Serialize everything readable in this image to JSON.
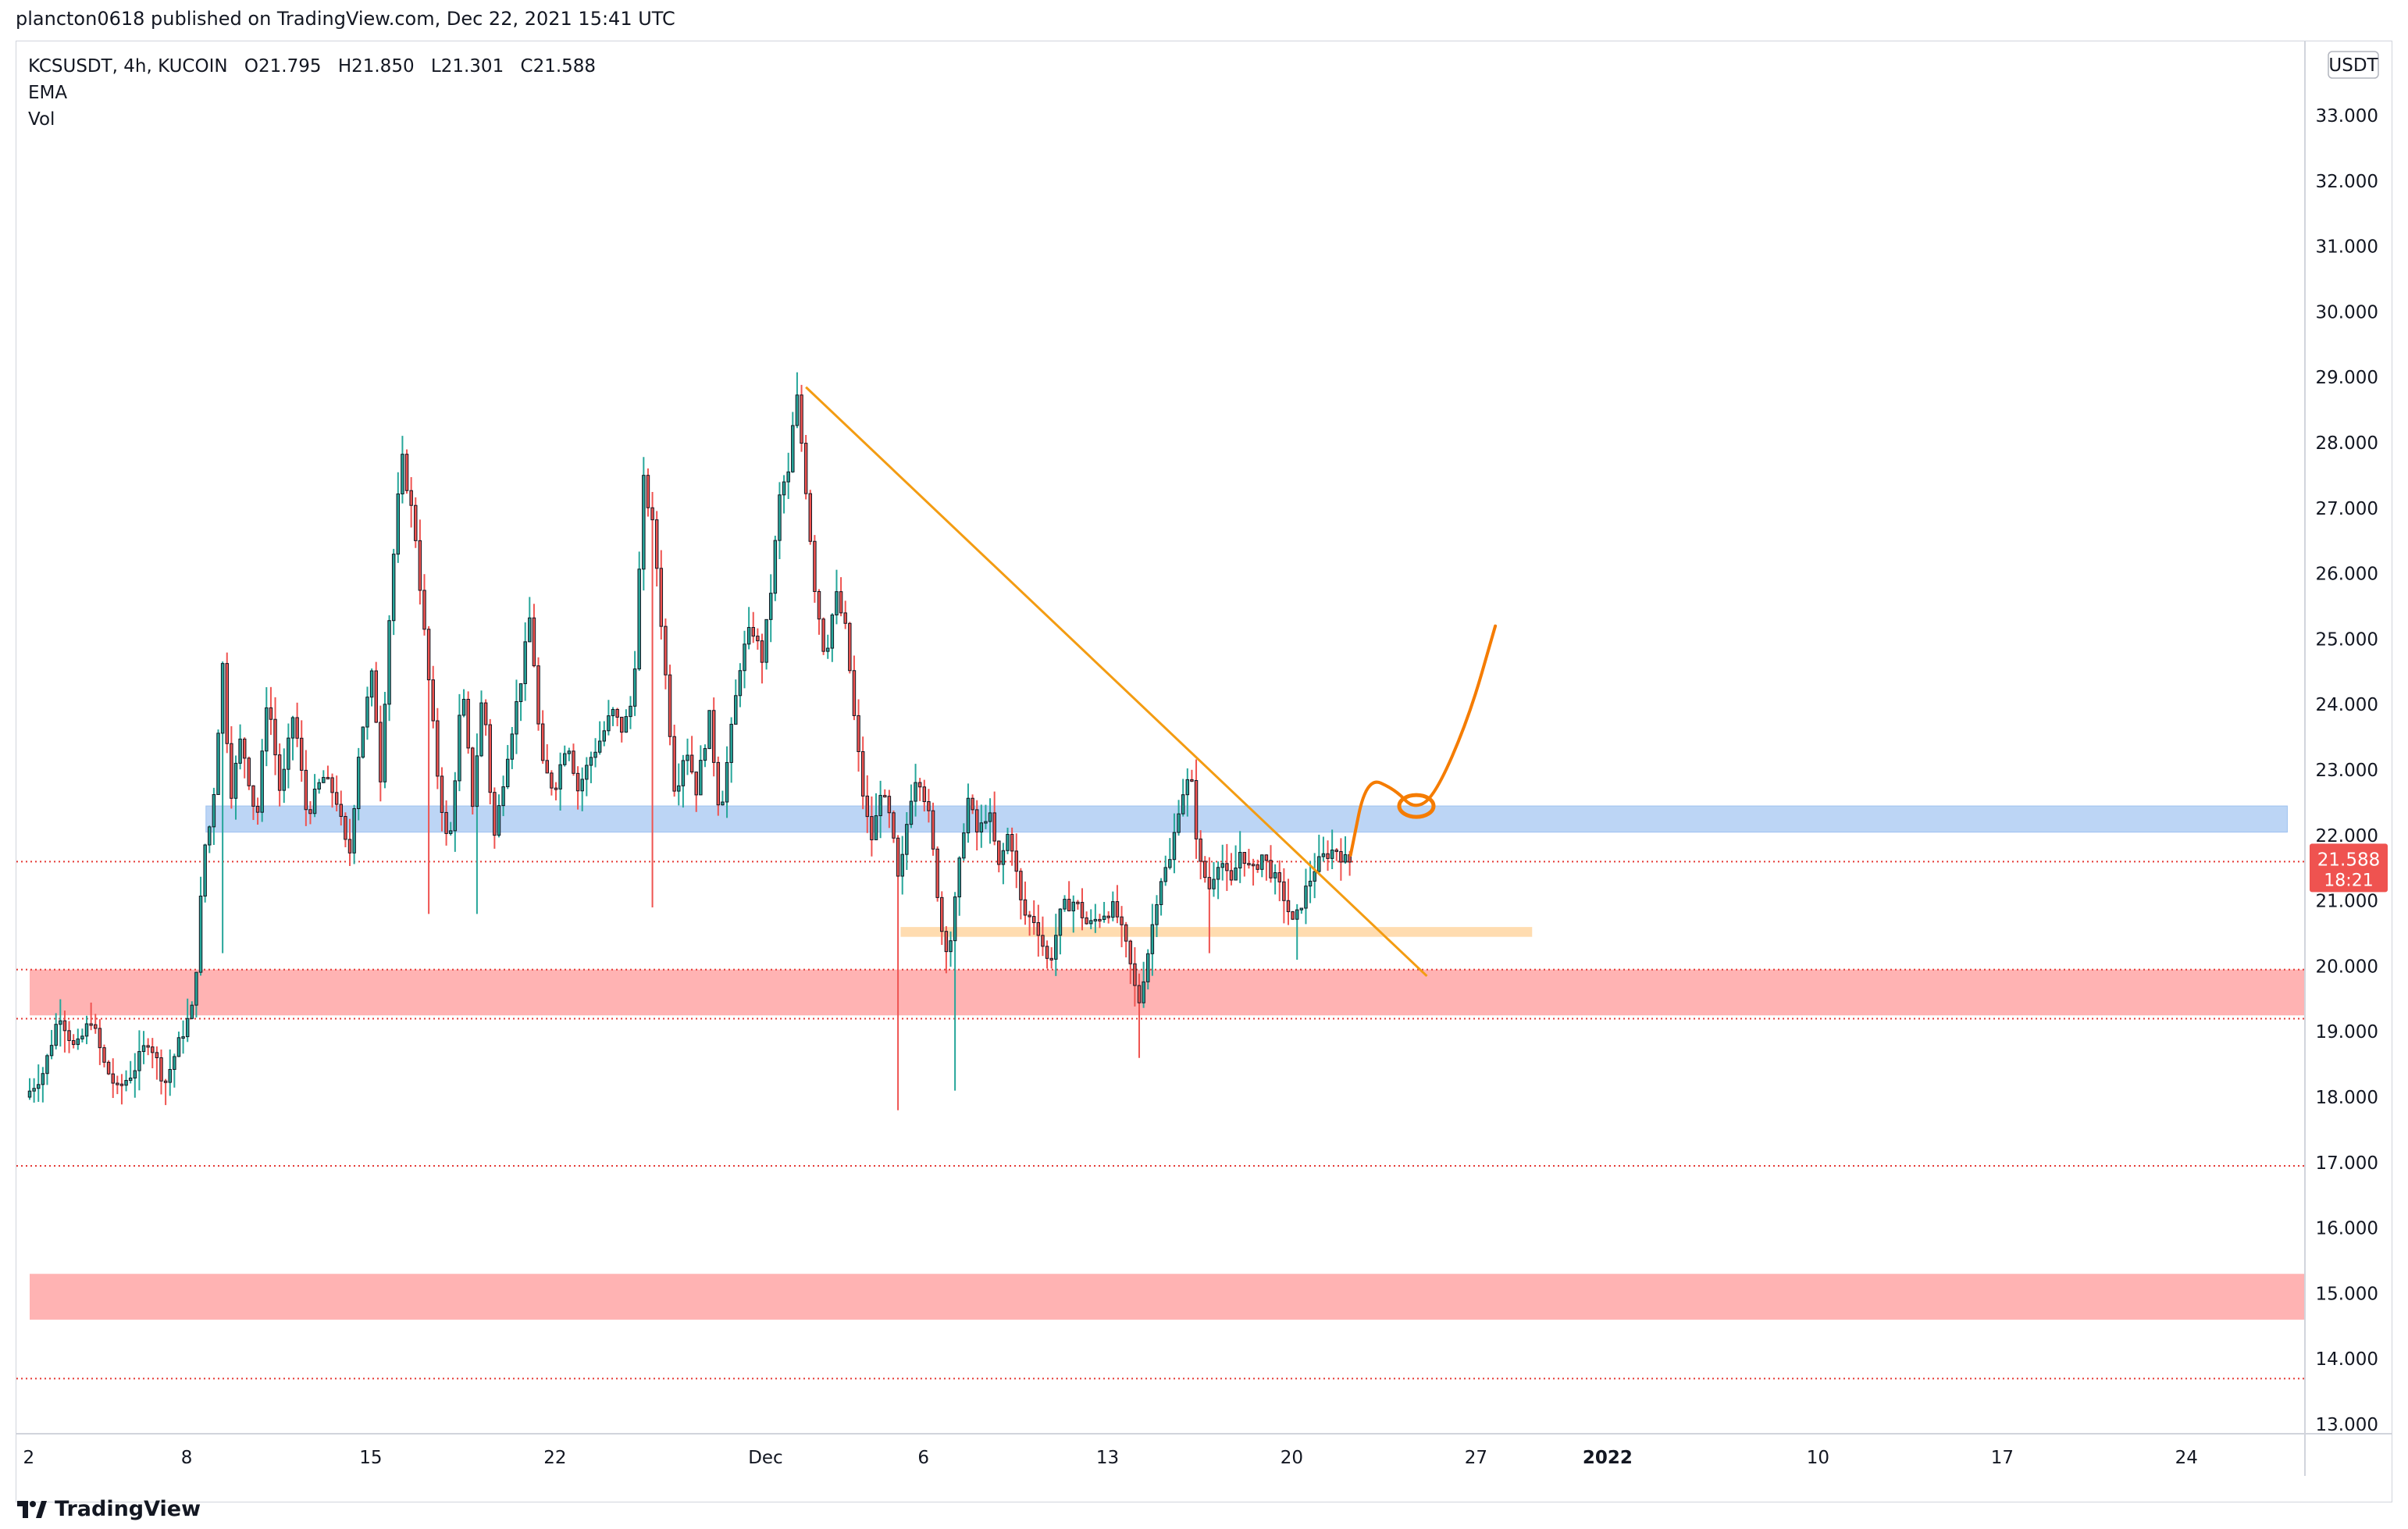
{
  "header": {
    "publish_text": "plancton0618 published on TradingView.com, Dec 22, 2021 15:41 UTC"
  },
  "legend": {
    "symbol": "KCSUSDT, 4h, KUCOIN",
    "open": "O21.795",
    "high": "H21.850",
    "low": "L21.301",
    "close": "C21.588",
    "indicator1": "EMA",
    "indicator2": "Vol"
  },
  "price_axis": {
    "currency": "USDT",
    "last_price": "21.588",
    "countdown": "18:21"
  },
  "footer": {
    "brand": "TradingView"
  },
  "colors": {
    "up": "#26a69a",
    "down": "#ef5350",
    "support_zone": "#ffb3b3",
    "resistance_zone": "#bcd5f5",
    "small_zone": "#ffdcb0",
    "trendline": "#f39c12",
    "projection": "#f57c00",
    "dotted_levels": "#e53935",
    "price_label_bg": "#ef5350"
  },
  "chart_data": {
    "type": "candlestick",
    "title": "KCSUSDT, 4h, KUCOIN",
    "ylim": [
      12.8,
      34.1
    ],
    "y_ticks": [
      "13.000",
      "14.000",
      "15.000",
      "16.000",
      "17.000",
      "18.000",
      "19.000",
      "20.000",
      "21.000",
      "22.000",
      "23.000",
      "24.000",
      "25.000",
      "26.000",
      "27.000",
      "28.000",
      "29.000",
      "30.000",
      "31.000",
      "32.000",
      "33.000"
    ],
    "x_ticks": [
      {
        "label": "2",
        "day": 1
      },
      {
        "label": "8",
        "day": 7
      },
      {
        "label": "15",
        "day": 14
      },
      {
        "label": "22",
        "day": 21
      },
      {
        "label": "Dec",
        "day": 29
      },
      {
        "label": "6",
        "day": 35
      },
      {
        "label": "13",
        "day": 42
      },
      {
        "label": "20",
        "day": 49
      },
      {
        "label": "27",
        "day": 56
      },
      {
        "label": "2022",
        "day": 61
      },
      {
        "label": "10",
        "day": 69
      },
      {
        "label": "17",
        "day": 76
      },
      {
        "label": "24",
        "day": 83
      }
    ],
    "day_range": [
      0.5,
      87.5
    ],
    "price_path": [
      [
        0.5,
        18.0
      ],
      [
        1.2,
        18.4
      ],
      [
        1.8,
        19.3
      ],
      [
        2.4,
        18.7
      ],
      [
        3.0,
        19.2
      ],
      [
        3.5,
        18.5
      ],
      [
        4.0,
        18.1
      ],
      [
        4.6,
        18.4
      ],
      [
        5.2,
        18.9
      ],
      [
        5.8,
        18.2
      ],
      [
        6.4,
        18.9
      ],
      [
        6.9,
        19.4
      ],
      [
        7.0,
        20.0
      ],
      [
        7.3,
        21.8
      ],
      [
        7.6,
        22.3
      ],
      [
        8.0,
        24.6
      ],
      [
        8.3,
        22.6
      ],
      [
        8.7,
        23.5
      ],
      [
        9.3,
        22.2
      ],
      [
        9.7,
        24.2
      ],
      [
        10.2,
        22.6
      ],
      [
        10.7,
        23.9
      ],
      [
        11.2,
        22.3
      ],
      [
        11.8,
        22.9
      ],
      [
        12.3,
        22.6
      ],
      [
        12.8,
        21.6
      ],
      [
        13.2,
        23.4
      ],
      [
        13.7,
        24.5
      ],
      [
        14.0,
        22.9
      ],
      [
        14.4,
        25.8
      ],
      [
        14.8,
        27.8
      ],
      [
        15.3,
        26.7
      ],
      [
        15.8,
        24.5
      ],
      [
        16.2,
        22.8
      ],
      [
        16.6,
        21.7
      ],
      [
        17.1,
        24.3
      ],
      [
        17.5,
        22.5
      ],
      [
        17.9,
        24.3
      ],
      [
        18.3,
        21.9
      ],
      [
        18.8,
        23.2
      ],
      [
        19.3,
        24.3
      ],
      [
        19.7,
        25.4
      ],
      [
        20.1,
        23.1
      ],
      [
        20.6,
        22.7
      ],
      [
        21.1,
        23.5
      ],
      [
        21.5,
        22.7
      ],
      [
        22.0,
        23.2
      ],
      [
        22.4,
        23.5
      ],
      [
        22.8,
        23.9
      ],
      [
        23.2,
        23.6
      ],
      [
        23.6,
        24.1
      ],
      [
        24.0,
        27.4
      ],
      [
        24.4,
        26.6
      ],
      [
        24.8,
        24.6
      ],
      [
        25.2,
        22.6
      ],
      [
        25.6,
        23.4
      ],
      [
        26.0,
        22.7
      ],
      [
        26.5,
        23.8
      ],
      [
        26.9,
        22.3
      ],
      [
        27.3,
        23.5
      ],
      [
        27.7,
        24.7
      ],
      [
        28.1,
        25.2
      ],
      [
        28.5,
        24.7
      ],
      [
        28.8,
        25.6
      ],
      [
        29.2,
        27.3
      ],
      [
        29.5,
        27.5
      ],
      [
        29.8,
        28.8
      ],
      [
        30.1,
        27.6
      ],
      [
        30.5,
        25.8
      ],
      [
        30.9,
        24.7
      ],
      [
        31.3,
        25.7
      ],
      [
        31.7,
        25.1
      ],
      [
        32.0,
        23.8
      ],
      [
        32.4,
        22.4
      ],
      [
        32.7,
        21.9
      ],
      [
        33.0,
        22.7
      ],
      [
        33.4,
        22.2
      ],
      [
        33.7,
        21.2
      ],
      [
        34.1,
        22.5
      ],
      [
        34.4,
        23.0
      ],
      [
        34.8,
        22.4
      ],
      [
        35.1,
        21.4
      ],
      [
        35.3,
        20.6
      ],
      [
        35.6,
        20.2
      ],
      [
        35.9,
        21.2
      ],
      [
        36.3,
        22.6
      ],
      [
        36.7,
        22.0
      ],
      [
        37.1,
        22.4
      ],
      [
        37.5,
        21.5
      ],
      [
        37.9,
        22.1
      ],
      [
        38.4,
        20.8
      ],
      [
        38.9,
        20.7
      ],
      [
        39.4,
        20.0
      ],
      [
        39.9,
        20.9
      ],
      [
        40.4,
        21.0
      ],
      [
        40.9,
        20.6
      ],
      [
        41.4,
        20.8
      ],
      [
        41.9,
        20.9
      ],
      [
        42.4,
        20.2
      ],
      [
        42.8,
        19.4
      ],
      [
        43.2,
        20.3
      ],
      [
        43.6,
        21.3
      ],
      [
        44.0,
        21.6
      ],
      [
        44.4,
        22.6
      ],
      [
        44.8,
        22.9
      ],
      [
        45.1,
        21.6
      ],
      [
        45.5,
        21.2
      ],
      [
        45.9,
        21.7
      ],
      [
        46.3,
        21.2
      ],
      [
        46.7,
        21.8
      ],
      [
        47.1,
        21.4
      ],
      [
        47.5,
        21.7
      ],
      [
        47.9,
        21.4
      ],
      [
        48.3,
        21.1
      ],
      [
        48.7,
        20.6
      ],
      [
        49.1,
        21.1
      ],
      [
        49.5,
        21.5
      ],
      [
        49.9,
        21.7
      ],
      [
        50.3,
        21.8
      ],
      [
        50.7,
        21.6
      ]
    ],
    "zones": [
      {
        "name": "resistance-zone-blue",
        "low": 22.05,
        "high": 22.45,
        "day_start": 7.2,
        "day_end": 86.3
      },
      {
        "name": "support-zone-red-upper",
        "low": 19.25,
        "high": 19.95,
        "day_start": 0.5,
        "day_end": 87.5
      },
      {
        "name": "support-zone-red-lower",
        "low": 14.6,
        "high": 15.3,
        "day_start": 0.5,
        "day_end": 87.5
      },
      {
        "name": "small-zone-orange",
        "low": 20.45,
        "high": 20.6,
        "day_start": 33.6,
        "day_end": 57.6
      }
    ],
    "dotted_levels": [
      21.6,
      19.95,
      19.2,
      16.95,
      13.7
    ],
    "trendline": [
      [
        30.0,
        28.85
      ],
      [
        53.6,
        19.85
      ]
    ],
    "projection_path": [
      [
        50.7,
        21.7
      ],
      [
        51.3,
        22.9
      ],
      [
        52.4,
        22.7
      ],
      [
        53.1,
        22.4
      ],
      [
        53.9,
        22.6
      ],
      [
        55.2,
        23.8
      ],
      [
        56.2,
        25.2
      ]
    ],
    "projection_loop": {
      "day": 53.2,
      "price": 22.45
    }
  }
}
